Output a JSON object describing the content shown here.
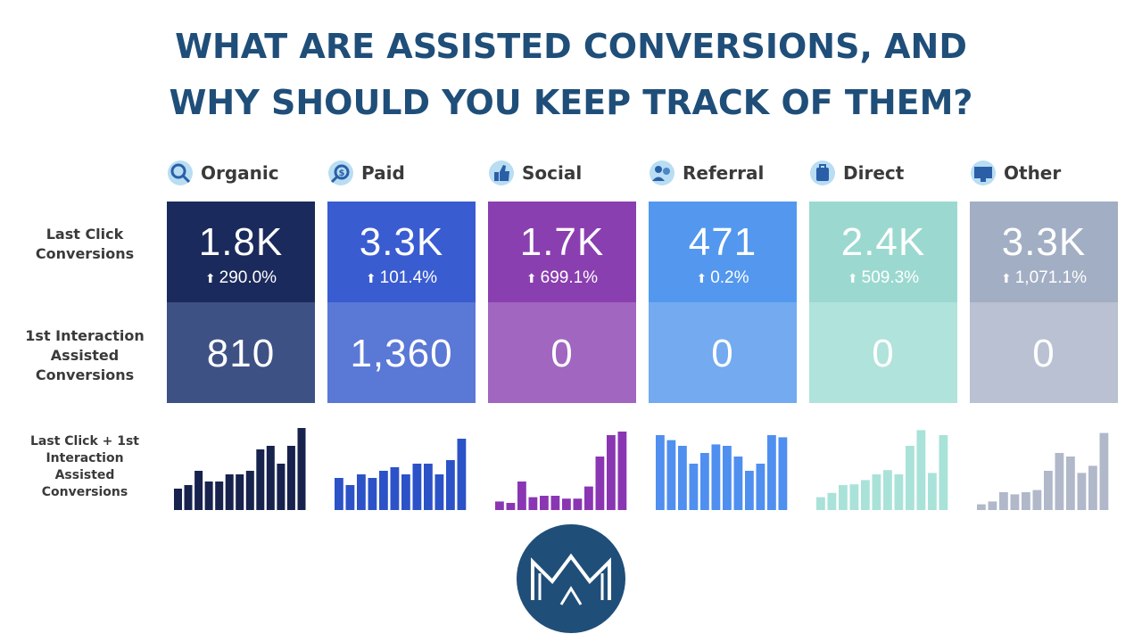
{
  "title": {
    "line1": "WHAT ARE ASSISTED CONVERSIONS, AND",
    "line2": "WHY SHOULD YOU KEEP TRACK OF THEM?"
  },
  "row_labels": {
    "last_click": "Last Click Conversions",
    "first_interaction": "1st Interaction Assisted Conversions",
    "combined": "Last Click + 1st Interaction Assisted Conversions"
  },
  "channels": [
    {
      "name": "Organic",
      "last_click": "1.8K",
      "change": "290.0%",
      "first_interaction": "810",
      "icon": "magnifier-icon",
      "color_top": "#1b2a5c",
      "color_bottom": "#3e5184",
      "bar_color": "#17224d"
    },
    {
      "name": "Paid",
      "last_click": "3.3K",
      "change": "101.4%",
      "first_interaction": "1,360",
      "icon": "paid-search-icon",
      "color_top": "#3a5cd1",
      "color_bottom": "#5a78d6",
      "bar_color": "#2c52c8"
    },
    {
      "name": "Social",
      "last_click": "1.7K",
      "change": "699.1%",
      "first_interaction": "0",
      "icon": "thumbs-up-icon",
      "color_top": "#8a3fb0",
      "color_bottom": "#a166c0",
      "bar_color": "#8a36b3"
    },
    {
      "name": "Referral",
      "last_click": "471",
      "change": "0.2%",
      "first_interaction": "0",
      "icon": "people-icon",
      "color_top": "#5398ee",
      "color_bottom": "#73aaf0",
      "bar_color": "#4f8ff0"
    },
    {
      "name": "Direct",
      "last_click": "2.4K",
      "change": "509.3%",
      "first_interaction": "0",
      "icon": "briefcase-icon",
      "color_top": "#9bd9d0",
      "color_bottom": "#b0e3db",
      "bar_color": "#a9e2d8"
    },
    {
      "name": "Other",
      "last_click": "3.3K",
      "change": "1,071.1%",
      "first_interaction": "0",
      "icon": "monitor-icon",
      "color_top": "#a2aec3",
      "color_bottom": "#b9c1d2",
      "bar_color": "#b0b8c9"
    }
  ],
  "logo": {
    "text": "MM",
    "bg_color": "#1f4e79"
  },
  "chart_data": {
    "type": "bar",
    "series": [
      {
        "name": "Organic",
        "values": [
          3,
          3.5,
          5.5,
          4,
          4,
          5,
          5,
          5.5,
          8.5,
          9,
          6.5,
          9,
          11.5
        ]
      },
      {
        "name": "Paid",
        "values": [
          4.5,
          3.5,
          5,
          4.5,
          5.5,
          6,
          5,
          6.5,
          6.5,
          5,
          7,
          10
        ]
      },
      {
        "name": "Social",
        "values": [
          1.2,
          1,
          4,
          1.8,
          2,
          2,
          1.6,
          1.6,
          3.3,
          7.5,
          10.5,
          11
        ]
      },
      {
        "name": "Referral",
        "values": [
          10.5,
          9.8,
          9,
          6.5,
          8,
          9.2,
          9,
          7.5,
          5.5,
          6.5,
          10.5,
          10.2
        ]
      },
      {
        "name": "Direct",
        "values": [
          1.8,
          2.4,
          3.5,
          3.6,
          4.2,
          5,
          5.6,
          5,
          9,
          11.2,
          5.2,
          10.5
        ]
      },
      {
        "name": "Other",
        "values": [
          0.8,
          1.2,
          2.5,
          2.2,
          2.5,
          2.8,
          5.5,
          8,
          7.5,
          5.2,
          6.2,
          10.8
        ]
      }
    ]
  }
}
